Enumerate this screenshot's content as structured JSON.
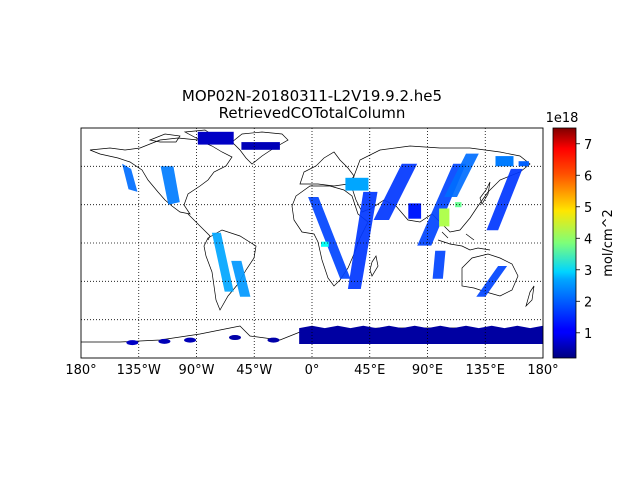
{
  "chart_data": {
    "type": "heatmap",
    "title_line1": "MOP02N-20180311-L2V19.9.2.he5",
    "title_line2": "RetrievedCOTotalColumn",
    "projection": "plate carree",
    "x_ticks": [
      "180°",
      "135°W",
      "90°W",
      "45°W",
      "0°",
      "45°E",
      "90°E",
      "135°E",
      "180°"
    ],
    "x_tick_values": [
      -180,
      -135,
      -90,
      -45,
      0,
      45,
      90,
      135,
      180
    ],
    "y_grid_values": [
      -60,
      -30,
      0,
      30,
      60
    ],
    "xlim": [
      -180,
      180
    ],
    "ylim": [
      -90,
      90
    ],
    "grid": "dotted",
    "colormap": "jet",
    "colorbar": {
      "label": "mol/cm^2",
      "exponent": "1e18",
      "ticks": [
        "1",
        "2",
        "3",
        "4",
        "5",
        "6",
        "7"
      ],
      "tick_values": [
        1,
        2,
        3,
        4,
        5,
        6,
        7
      ],
      "vmin": 0.2,
      "vmax": 7.5,
      "placement": "right"
    },
    "swaths": [
      {
        "x": [
          -148,
          -141,
          -136,
          -143
        ],
        "y": [
          62,
          58,
          40,
          42
        ],
        "v": 1.9
      },
      {
        "x": [
          -118,
          -108,
          -103,
          -112
        ],
        "y": [
          60,
          60,
          32,
          30
        ],
        "v": 2.0
      },
      {
        "x": [
          -78,
          -71,
          -61,
          -68
        ],
        "y": [
          8,
          8,
          -38,
          -38
        ],
        "v": 2.3
      },
      {
        "x": [
          -63,
          -55,
          -48,
          -56
        ],
        "y": [
          -14,
          -14,
          -42,
          -42
        ],
        "v": 2.2
      },
      {
        "x": [
          -3,
          5,
          30,
          22
        ],
        "y": [
          36,
          36,
          -28,
          -28
        ],
        "v": 1.6
      },
      {
        "x": [
          40,
          51,
          38,
          28
        ],
        "y": [
          40,
          40,
          -36,
          -36
        ],
        "v": 1.5
      },
      {
        "x": [
          70,
          82,
          60,
          48
        ],
        "y": [
          62,
          62,
          18,
          18
        ],
        "v": 1.5
      },
      {
        "x": [
          110,
          120,
          93,
          82
        ],
        "y": [
          62,
          62,
          -2,
          -2
        ],
        "v": 1.6
      },
      {
        "x": [
          155,
          164,
          145,
          136
        ],
        "y": [
          58,
          58,
          10,
          10
        ],
        "v": 1.5
      },
      {
        "x": [
          120,
          130,
          113,
          103
        ],
        "y": [
          70,
          70,
          36,
          36
        ],
        "v": 1.9
      },
      {
        "x": [
          145,
          152,
          135,
          128
        ],
        "y": [
          -18,
          -18,
          -42,
          -42
        ],
        "v": 1.6
      },
      {
        "x": [
          96,
          104,
          102,
          94
        ],
        "y": [
          -6,
          -6,
          -28,
          -28
        ],
        "v": 1.6
      }
    ],
    "patches": [
      {
        "lon": -75,
        "lat": 82,
        "w": 28,
        "h": 10,
        "v": 0.7
      },
      {
        "lon": -40,
        "lat": 76,
        "w": 30,
        "h": 6,
        "v": 0.6
      },
      {
        "lon": 103,
        "lat": 20,
        "w": 8,
        "h": 14,
        "v": 4.2
      },
      {
        "lon": 80,
        "lat": 25,
        "w": 10,
        "h": 12,
        "v": 1.3
      },
      {
        "lon": 114,
        "lat": 30,
        "w": 5,
        "h": 4,
        "v": 3.7
      },
      {
        "lon": 10,
        "lat": -1,
        "w": 6,
        "h": 4,
        "v": 3.0
      },
      {
        "lon": 35,
        "lat": 46,
        "w": 18,
        "h": 10,
        "v": 2.3
      },
      {
        "lon": 150,
        "lat": 64,
        "w": 14,
        "h": 8,
        "v": 2.0
      },
      {
        "lon": 165,
        "lat": 62,
        "w": 8,
        "h": 4,
        "v": 1.8
      }
    ],
    "antarctic_band": {
      "lon_start": -10,
      "lon_end": 180,
      "lat_top": -66,
      "lat_bottom": -79,
      "v": 0.45
    },
    "antarctic_spots": [
      {
        "lon": -95,
        "lat": -76,
        "v": 0.6
      },
      {
        "lon": -140,
        "lat": -78,
        "v": 0.7
      },
      {
        "lon": -60,
        "lat": -74,
        "v": 0.5
      },
      {
        "lon": -30,
        "lat": -76,
        "v": 0.5
      },
      {
        "lon": -115,
        "lat": -77,
        "v": 0.6
      }
    ]
  }
}
